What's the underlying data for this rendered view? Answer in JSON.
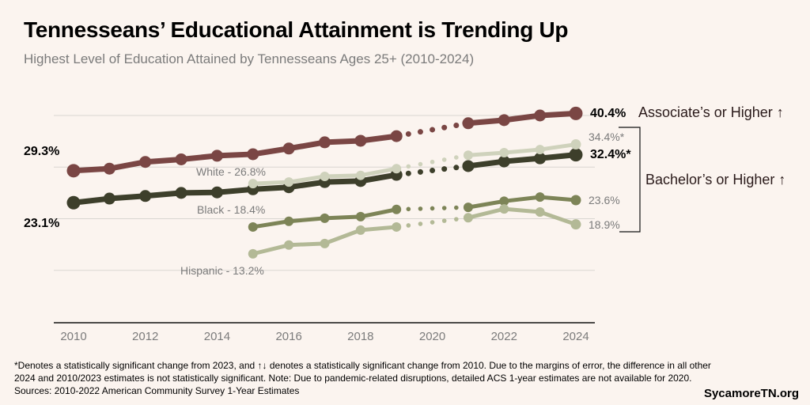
{
  "title": "Tennesseans’ Educational Attainment is Trending Up",
  "subtitle": "Highest Level of Education Attained by Tennesseans Ages 25+ (2010-2024)",
  "footnote_lines": [
    "*Denotes a statistically significant change from 2023, and ↑↓ denotes a statistically significant change from 2010. Due to the margins of error, the difference in all other",
    "2024 and 2010/2023 estimates is not statistically significant. Note: Due to pandemic-related disruptions, detailed ACS 1-year estimates are not available for 2020.",
    "Sources: 2010-2022 American Community Survey 1-Year Estimates"
  ],
  "brand": "SycamoreTN.org",
  "chart_data": {
    "type": "line",
    "title": "Tennesseans’ Educational Attainment is Trending Up",
    "subtitle": "Highest Level of Education Attained by Tennesseans Ages 25+ (2010-2024)",
    "xlabel": "",
    "ylabel": "",
    "xlim": [
      2010,
      2024
    ],
    "ylim": [
      0,
      40
    ],
    "x_ticks": [
      "2010",
      "2012",
      "2014",
      "2016",
      "2018",
      "2020",
      "2022",
      "2024"
    ],
    "gridlines_y": [
      10,
      20,
      30,
      40
    ],
    "grid": true,
    "missing_year_note": "2020 gap shown as dotted segment",
    "series": [
      {
        "name": "Associate's or Higher",
        "color": "#7a4644",
        "weight": "heavy",
        "x": [
          2010,
          2011,
          2012,
          2013,
          2014,
          2015,
          2016,
          2017,
          2018,
          2019,
          2021,
          2022,
          2023,
          2024
        ],
        "values": [
          29.3,
          29.7,
          31.0,
          31.5,
          32.2,
          32.5,
          33.6,
          34.8,
          35.1,
          36.0,
          38.5,
          39.1,
          40.0,
          40.4
        ],
        "start_label": "29.3%",
        "end_label": "40.4%"
      },
      {
        "name": "Bachelor's or Higher",
        "color": "#3d3f2b",
        "weight": "heavy",
        "x": [
          2010,
          2011,
          2012,
          2013,
          2014,
          2015,
          2016,
          2017,
          2018,
          2019,
          2021,
          2022,
          2023,
          2024
        ],
        "values": [
          23.1,
          23.9,
          24.4,
          25.0,
          25.1,
          25.7,
          26.1,
          27.1,
          27.3,
          28.5,
          30.2,
          31.1,
          31.7,
          32.4
        ],
        "start_label": "23.1%",
        "end_label": "32.4%*"
      },
      {
        "name": "White",
        "color": "#cfd2bc",
        "weight": "light",
        "x": [
          2015,
          2016,
          2017,
          2018,
          2019,
          2021,
          2022,
          2023,
          2024
        ],
        "values": [
          26.8,
          27.1,
          28.2,
          28.4,
          29.7,
          32.3,
          32.8,
          33.4,
          34.4
        ],
        "start_label": "White - 26.8%",
        "end_label": "34.4%*"
      },
      {
        "name": "Black",
        "color": "#7d8457",
        "weight": "light",
        "x": [
          2015,
          2016,
          2017,
          2018,
          2019,
          2021,
          2022,
          2023,
          2024
        ],
        "values": [
          18.4,
          19.5,
          20.1,
          20.4,
          21.8,
          22.2,
          23.4,
          24.2,
          23.6
        ],
        "start_label": "Black - 18.4%",
        "end_label": "23.6%"
      },
      {
        "name": "Hispanic",
        "color": "#b3b996",
        "weight": "light",
        "x": [
          2015,
          2016,
          2017,
          2018,
          2019,
          2021,
          2022,
          2023,
          2024
        ],
        "values": [
          13.2,
          14.9,
          15.2,
          17.8,
          18.4,
          20.2,
          21.9,
          21.3,
          18.9
        ],
        "start_label": "Hispanic - 13.2%",
        "end_label": "18.9%"
      }
    ],
    "annotations": [
      {
        "text": "Associate’s or Higher ↑",
        "refers_to": "Associate's or Higher"
      },
      {
        "text": "Bachelor’s or Higher ↑",
        "refers_to": [
          "Bachelor's or Higher",
          "White",
          "Black",
          "Hispanic"
        ],
        "bracket": true
      }
    ]
  }
}
